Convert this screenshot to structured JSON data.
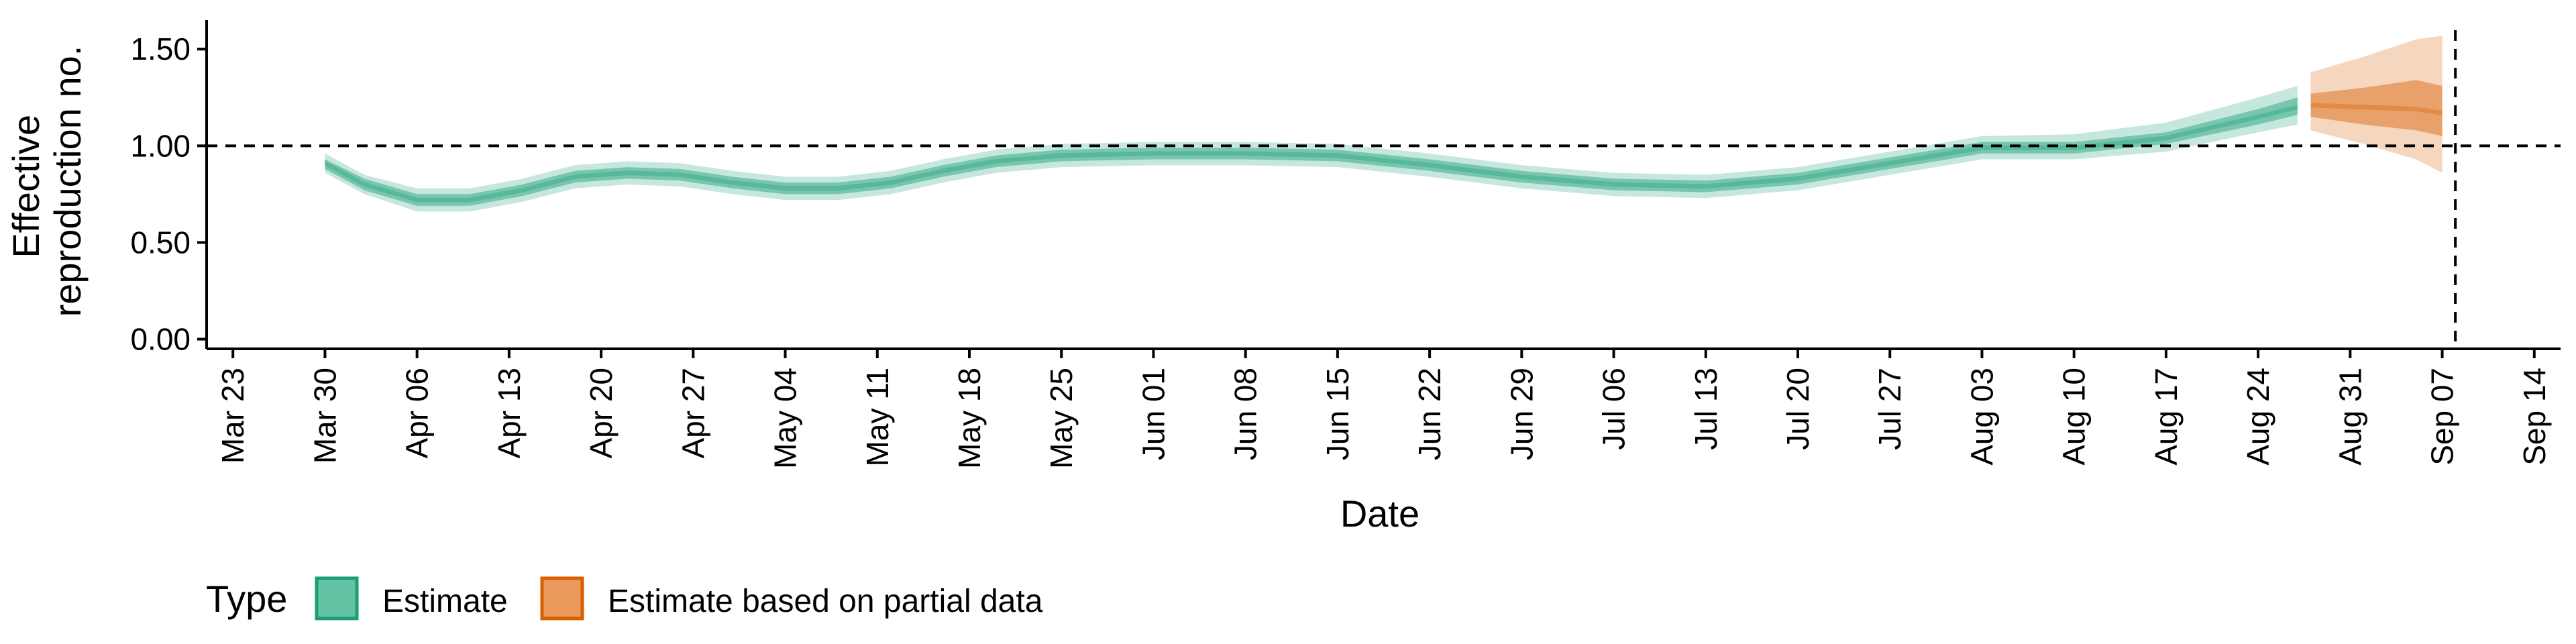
{
  "chart_data": {
    "type": "area",
    "xlabel": "Date",
    "ylabel_lines": [
      "Effective",
      "reproduction no."
    ],
    "ylim": [
      -0.05,
      1.65
    ],
    "y_ticks": [
      {
        "value": 0.0,
        "label": "0.00"
      },
      {
        "value": 0.5,
        "label": "0.50"
      },
      {
        "value": 1.0,
        "label": "1.00"
      },
      {
        "value": 1.5,
        "label": "1.50"
      }
    ],
    "x_range_dates": [
      "2020-03-21",
      "2020-09-16"
    ],
    "x_ticks": [
      {
        "date": "2020-03-23",
        "label": "Mar 23"
      },
      {
        "date": "2020-03-30",
        "label": "Mar 30"
      },
      {
        "date": "2020-04-06",
        "label": "Apr 06"
      },
      {
        "date": "2020-04-13",
        "label": "Apr 13"
      },
      {
        "date": "2020-04-20",
        "label": "Apr 20"
      },
      {
        "date": "2020-04-27",
        "label": "Apr 27"
      },
      {
        "date": "2020-05-04",
        "label": "May 04"
      },
      {
        "date": "2020-05-11",
        "label": "May 11"
      },
      {
        "date": "2020-05-18",
        "label": "May 18"
      },
      {
        "date": "2020-05-25",
        "label": "May 25"
      },
      {
        "date": "2020-06-01",
        "label": "Jun 01"
      },
      {
        "date": "2020-06-08",
        "label": "Jun 08"
      },
      {
        "date": "2020-06-15",
        "label": "Jun 15"
      },
      {
        "date": "2020-06-22",
        "label": "Jun 22"
      },
      {
        "date": "2020-06-29",
        "label": "Jun 29"
      },
      {
        "date": "2020-07-06",
        "label": "Jul 06"
      },
      {
        "date": "2020-07-13",
        "label": "Jul 13"
      },
      {
        "date": "2020-07-20",
        "label": "Jul 20"
      },
      {
        "date": "2020-07-27",
        "label": "Jul 27"
      },
      {
        "date": "2020-08-03",
        "label": "Aug 03"
      },
      {
        "date": "2020-08-10",
        "label": "Aug 10"
      },
      {
        "date": "2020-08-17",
        "label": "Aug 17"
      },
      {
        "date": "2020-08-24",
        "label": "Aug 24"
      },
      {
        "date": "2020-08-31",
        "label": "Aug 31"
      },
      {
        "date": "2020-09-07",
        "label": "Sep 07"
      },
      {
        "date": "2020-09-14",
        "label": "Sep 14"
      }
    ],
    "hline": 1.0,
    "vline_date": "2020-09-08",
    "grid": false,
    "legend": {
      "title": "Type",
      "position": "bottom-left",
      "items": [
        {
          "label": "Estimate",
          "fill": "#66c2a5",
          "stroke": "#1b9e77"
        },
        {
          "label": "Estimate based on partial data",
          "fill": "#eb9a5c",
          "stroke": "#d95f02"
        }
      ]
    },
    "series": [
      {
        "name": "Estimate",
        "color": "#1b9e77",
        "points": [
          {
            "date": "2020-03-30",
            "lo90": 0.86,
            "lo50": 0.88,
            "median": 0.91,
            "hi50": 0.93,
            "hi90": 0.96
          },
          {
            "date": "2020-04-02",
            "lo90": 0.75,
            "lo50": 0.77,
            "median": 0.8,
            "hi50": 0.83,
            "hi90": 0.85
          },
          {
            "date": "2020-04-06",
            "lo90": 0.66,
            "lo50": 0.69,
            "median": 0.72,
            "hi50": 0.75,
            "hi90": 0.78
          },
          {
            "date": "2020-04-10",
            "lo90": 0.66,
            "lo50": 0.69,
            "median": 0.72,
            "hi50": 0.75,
            "hi90": 0.78
          },
          {
            "date": "2020-04-14",
            "lo90": 0.71,
            "lo50": 0.74,
            "median": 0.77,
            "hi50": 0.8,
            "hi90": 0.83
          },
          {
            "date": "2020-04-18",
            "lo90": 0.78,
            "lo50": 0.81,
            "median": 0.84,
            "hi50": 0.87,
            "hi90": 0.9
          },
          {
            "date": "2020-04-22",
            "lo90": 0.8,
            "lo50": 0.83,
            "median": 0.86,
            "hi50": 0.89,
            "hi90": 0.92
          },
          {
            "date": "2020-04-26",
            "lo90": 0.79,
            "lo50": 0.82,
            "median": 0.85,
            "hi50": 0.88,
            "hi90": 0.91
          },
          {
            "date": "2020-04-30",
            "lo90": 0.75,
            "lo50": 0.78,
            "median": 0.81,
            "hi50": 0.84,
            "hi90": 0.87
          },
          {
            "date": "2020-05-04",
            "lo90": 0.72,
            "lo50": 0.75,
            "median": 0.78,
            "hi50": 0.81,
            "hi90": 0.84
          },
          {
            "date": "2020-05-08",
            "lo90": 0.72,
            "lo50": 0.75,
            "median": 0.78,
            "hi50": 0.81,
            "hi90": 0.84
          },
          {
            "date": "2020-05-12",
            "lo90": 0.75,
            "lo50": 0.78,
            "median": 0.81,
            "hi50": 0.84,
            "hi90": 0.87
          },
          {
            "date": "2020-05-16",
            "lo90": 0.81,
            "lo50": 0.84,
            "median": 0.87,
            "hi50": 0.9,
            "hi90": 0.93
          },
          {
            "date": "2020-05-20",
            "lo90": 0.86,
            "lo50": 0.89,
            "median": 0.92,
            "hi50": 0.95,
            "hi90": 0.98
          },
          {
            "date": "2020-05-25",
            "lo90": 0.89,
            "lo50": 0.92,
            "median": 0.95,
            "hi50": 0.98,
            "hi90": 1.01
          },
          {
            "date": "2020-06-01",
            "lo90": 0.9,
            "lo50": 0.93,
            "median": 0.96,
            "hi50": 0.99,
            "hi90": 1.02
          },
          {
            "date": "2020-06-08",
            "lo90": 0.9,
            "lo50": 0.93,
            "median": 0.96,
            "hi50": 0.99,
            "hi90": 1.02
          },
          {
            "date": "2020-06-15",
            "lo90": 0.89,
            "lo50": 0.92,
            "median": 0.95,
            "hi50": 0.98,
            "hi90": 1.01
          },
          {
            "date": "2020-06-22",
            "lo90": 0.84,
            "lo50": 0.87,
            "median": 0.9,
            "hi50": 0.93,
            "hi90": 0.96
          },
          {
            "date": "2020-06-29",
            "lo90": 0.78,
            "lo50": 0.81,
            "median": 0.84,
            "hi50": 0.87,
            "hi90": 0.9
          },
          {
            "date": "2020-07-06",
            "lo90": 0.74,
            "lo50": 0.77,
            "median": 0.8,
            "hi50": 0.83,
            "hi90": 0.86
          },
          {
            "date": "2020-07-13",
            "lo90": 0.73,
            "lo50": 0.76,
            "median": 0.79,
            "hi50": 0.82,
            "hi90": 0.85
          },
          {
            "date": "2020-07-20",
            "lo90": 0.77,
            "lo50": 0.8,
            "median": 0.83,
            "hi50": 0.86,
            "hi90": 0.89
          },
          {
            "date": "2020-07-27",
            "lo90": 0.85,
            "lo50": 0.88,
            "median": 0.91,
            "hi50": 0.94,
            "hi90": 0.97
          },
          {
            "date": "2020-08-03",
            "lo90": 0.93,
            "lo50": 0.96,
            "median": 0.99,
            "hi50": 1.02,
            "hi90": 1.05
          },
          {
            "date": "2020-08-10",
            "lo90": 0.93,
            "lo50": 0.96,
            "median": 0.99,
            "hi50": 1.02,
            "hi90": 1.06
          },
          {
            "date": "2020-08-17",
            "lo90": 0.97,
            "lo50": 1.01,
            "median": 1.04,
            "hi50": 1.07,
            "hi90": 1.12
          },
          {
            "date": "2020-08-24",
            "lo90": 1.07,
            "lo50": 1.11,
            "median": 1.15,
            "hi50": 1.19,
            "hi90": 1.25
          },
          {
            "date": "2020-08-27",
            "lo90": 1.11,
            "lo50": 1.16,
            "median": 1.2,
            "hi50": 1.25,
            "hi90": 1.31
          }
        ]
      },
      {
        "name": "Estimate based on partial data",
        "color": "#d95f02",
        "points": [
          {
            "date": "2020-08-28",
            "lo90": 1.08,
            "lo50": 1.15,
            "median": 1.21,
            "hi50": 1.27,
            "hi90": 1.38
          },
          {
            "date": "2020-09-01",
            "lo90": 1.01,
            "lo50": 1.11,
            "median": 1.2,
            "hi50": 1.3,
            "hi90": 1.46
          },
          {
            "date": "2020-09-05",
            "lo90": 0.93,
            "lo50": 1.08,
            "median": 1.19,
            "hi50": 1.34,
            "hi90": 1.55
          },
          {
            "date": "2020-09-07",
            "lo90": 0.86,
            "lo50": 1.05,
            "median": 1.17,
            "hi50": 1.31,
            "hi90": 1.57
          }
        ]
      }
    ]
  }
}
